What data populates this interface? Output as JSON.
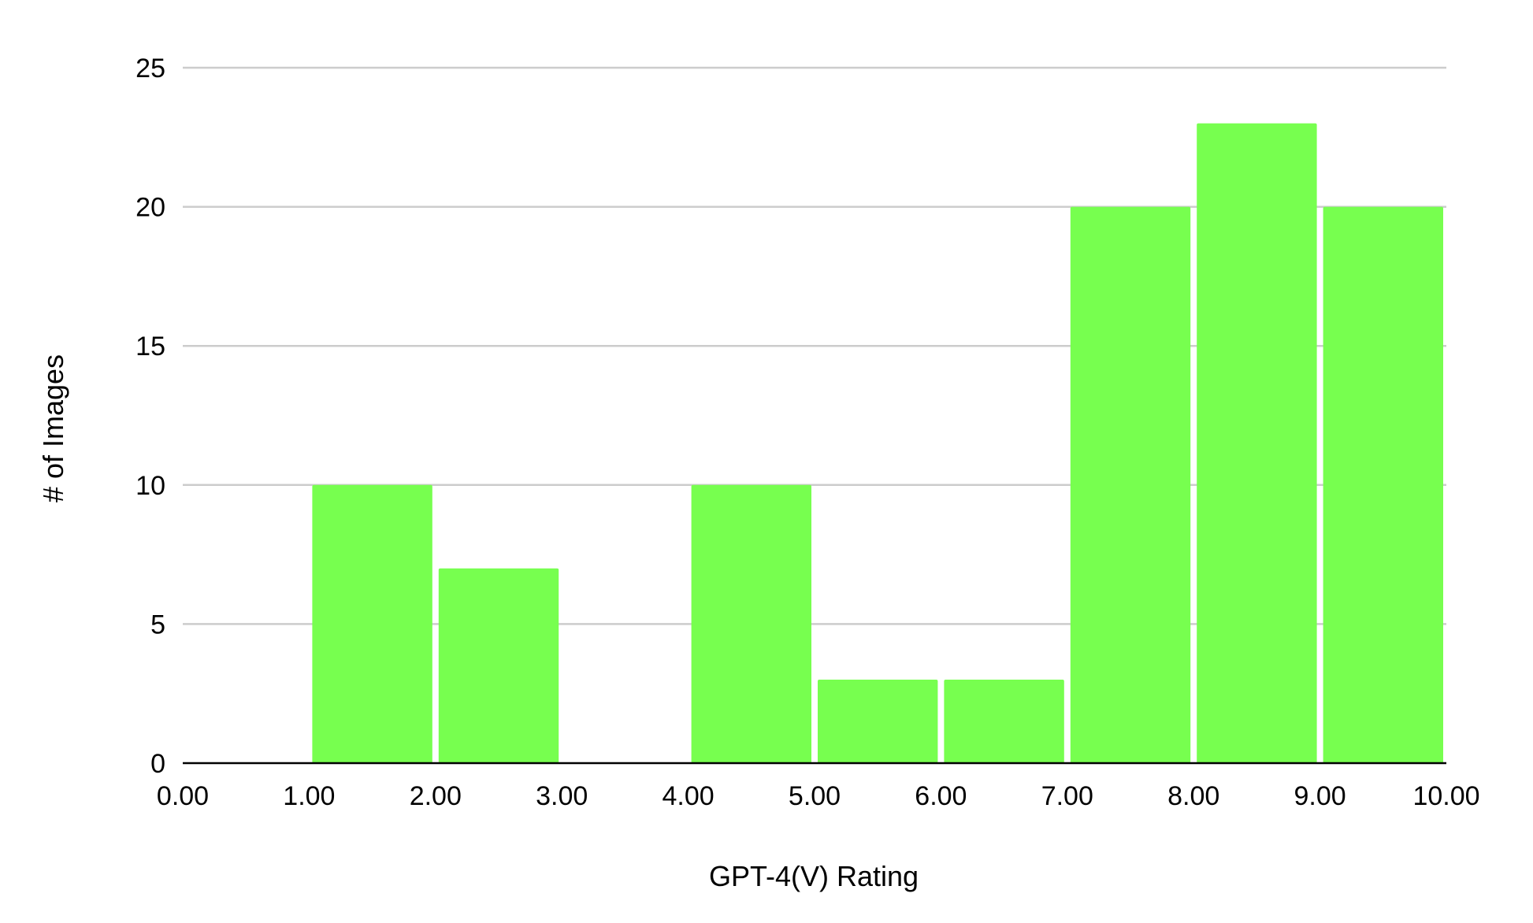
{
  "chart_data": {
    "type": "bar",
    "title": "",
    "xlabel": "GPT-4(V) Rating",
    "ylabel": "# of Images",
    "xlim": [
      0,
      10
    ],
    "ylim": [
      0,
      25
    ],
    "x_ticks": [
      "0.00",
      "1.00",
      "2.00",
      "3.00",
      "4.00",
      "5.00",
      "6.00",
      "7.00",
      "8.00",
      "9.00",
      "10.00"
    ],
    "y_ticks": [
      "0",
      "5",
      "10",
      "15",
      "20",
      "25"
    ],
    "bins": [
      {
        "start": 0,
        "end": 1,
        "value": 0
      },
      {
        "start": 1,
        "end": 2,
        "value": 10
      },
      {
        "start": 2,
        "end": 3,
        "value": 7
      },
      {
        "start": 3,
        "end": 4,
        "value": 0
      },
      {
        "start": 4,
        "end": 5,
        "value": 10
      },
      {
        "start": 5,
        "end": 6,
        "value": 3
      },
      {
        "start": 6,
        "end": 7,
        "value": 3
      },
      {
        "start": 7,
        "end": 8,
        "value": 20
      },
      {
        "start": 8,
        "end": 9,
        "value": 23
      },
      {
        "start": 9,
        "end": 10,
        "value": 20
      }
    ],
    "grid": true,
    "colors": {
      "bar": "#77ff4f",
      "grid": "#cccccc",
      "axis": "#000000"
    }
  }
}
